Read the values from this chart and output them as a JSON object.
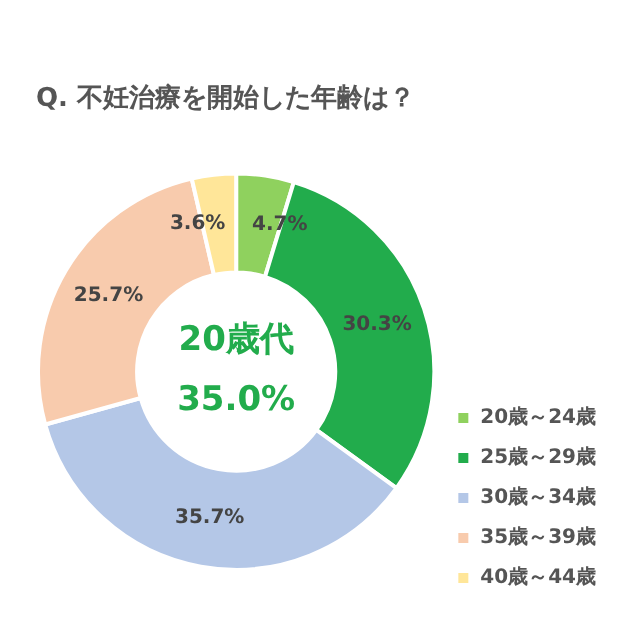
{
  "chart_data": {
    "type": "donut",
    "title": "Q. 不妊治療を開始した年齢は？",
    "categories": [
      "20歳～24歳",
      "25歳～29歳",
      "30歳～34歳",
      "35歳～39歳",
      "40歳～44歳"
    ],
    "values": [
      4.7,
      30.3,
      35.7,
      25.7,
      3.6
    ],
    "colors": [
      "#8fd15e",
      "#22ac4c",
      "#b4c7e7",
      "#f8cbad",
      "#ffe699"
    ],
    "value_labels": [
      "4.7%",
      "30.3%",
      "35.7%",
      "25.7%",
      "3.6%"
    ],
    "annotations": [
      "20歳代",
      "35.0%"
    ],
    "legend": "bottom right"
  }
}
